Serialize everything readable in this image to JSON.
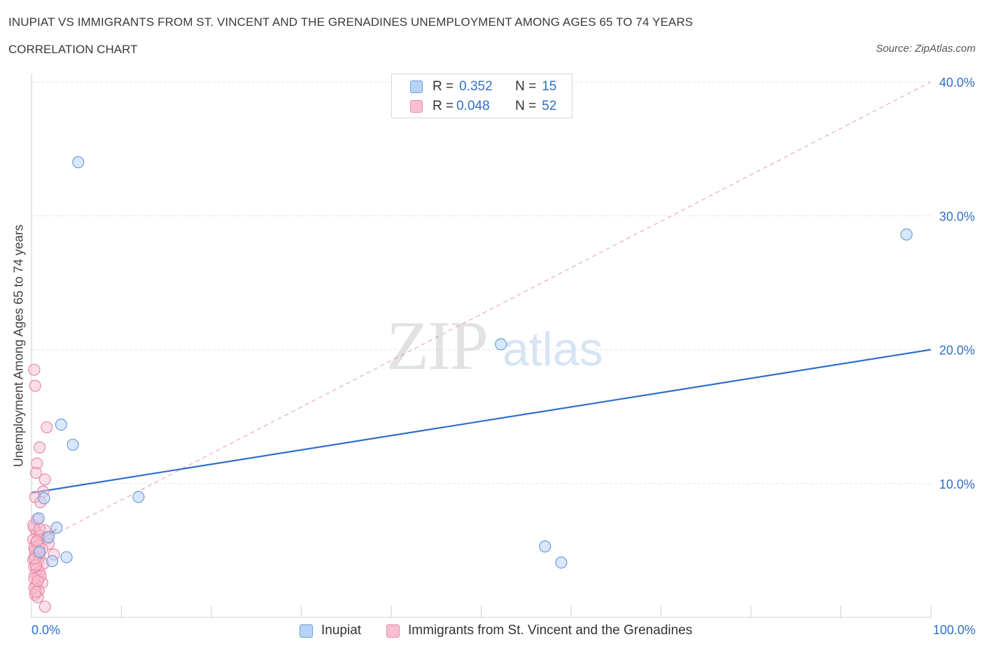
{
  "header": {
    "title": "INUPIAT VS IMMIGRANTS FROM ST. VINCENT AND THE GRENADINES UNEMPLOYMENT AMONG AGES 65 TO 74 YEARS",
    "subtitle": "CORRELATION CHART",
    "source": "Source: ZipAtlas.com"
  },
  "watermark": {
    "zip": "ZIP",
    "atlas": "atlas"
  },
  "legend_top": {
    "r_label": "R =",
    "n_label": "N =",
    "series": [
      {
        "r": "0.352",
        "n": "15"
      },
      {
        "r": "0.048",
        "n": "52"
      }
    ]
  },
  "colors": {
    "blue_fill": "#b8d3f5",
    "blue_stroke": "#6b9edb",
    "blue_line": "#2f6fc9",
    "pink_fill": "#f7bfd0",
    "pink_stroke": "#e98aa8",
    "pink_line": "#e17297",
    "axis_text": "#2f6fc9",
    "grid": "#e4e4e4"
  },
  "chart_data": {
    "type": "scatter",
    "title": "INUPIAT VS IMMIGRANTS FROM ST. VINCENT AND THE GRENADINES UNEMPLOYMENT AMONG AGES 65 TO 74 YEARS",
    "xlabel": "",
    "ylabel": "Unemployment Among Ages 65 to 74 years",
    "xlim": [
      0,
      100
    ],
    "ylim": [
      0,
      40
    ],
    "x_tick_labels": [
      "0.0%",
      "100.0%"
    ],
    "y_ticks": [
      10,
      20,
      30,
      40
    ],
    "y_tick_labels": [
      "10.0%",
      "20.0%",
      "30.0%",
      "40.0%"
    ],
    "grid": true,
    "series": [
      {
        "name": "Inupiat",
        "color": "blue",
        "points": [
          [
            5.2,
            34.0
          ],
          [
            3.3,
            14.4
          ],
          [
            4.6,
            12.9
          ],
          [
            1.4,
            8.9
          ],
          [
            0.8,
            7.4
          ],
          [
            2.8,
            6.7
          ],
          [
            1.9,
            6.0
          ],
          [
            0.9,
            4.9
          ],
          [
            3.9,
            4.5
          ],
          [
            2.3,
            4.2
          ],
          [
            11.9,
            9.0
          ],
          [
            52.2,
            20.4
          ],
          [
            57.1,
            5.3
          ],
          [
            58.9,
            4.1
          ],
          [
            97.3,
            28.6
          ]
        ],
        "trend": [
          [
            0,
            9.3
          ],
          [
            100,
            20.0
          ]
        ]
      },
      {
        "name": "Immigrants from St. Vincent and the Grenadines",
        "color": "pink",
        "points": [
          [
            0.3,
            18.5
          ],
          [
            0.4,
            17.3
          ],
          [
            1.7,
            14.2
          ],
          [
            0.9,
            12.7
          ],
          [
            0.6,
            11.5
          ],
          [
            0.5,
            10.8
          ],
          [
            1.5,
            10.3
          ],
          [
            1.3,
            9.4
          ],
          [
            0.4,
            9.0
          ],
          [
            1.0,
            8.6
          ],
          [
            0.3,
            6.7
          ],
          [
            1.5,
            6.5
          ],
          [
            0.6,
            6.3
          ],
          [
            0.9,
            6.1
          ],
          [
            1.7,
            5.9
          ],
          [
            0.2,
            5.8
          ],
          [
            0.5,
            5.6
          ],
          [
            1.9,
            5.5
          ],
          [
            0.8,
            5.4
          ],
          [
            0.3,
            5.2
          ],
          [
            1.2,
            5.1
          ],
          [
            0.6,
            4.9
          ],
          [
            2.5,
            4.7
          ],
          [
            0.4,
            4.6
          ],
          [
            0.9,
            4.5
          ],
          [
            0.2,
            4.3
          ],
          [
            0.7,
            4.1
          ],
          [
            1.3,
            4.0
          ],
          [
            0.3,
            3.8
          ],
          [
            0.6,
            3.6
          ],
          [
            0.9,
            3.4
          ],
          [
            0.4,
            3.2
          ],
          [
            0.7,
            3.0
          ],
          [
            1.2,
            2.6
          ],
          [
            0.5,
            2.4
          ],
          [
            0.3,
            2.2
          ],
          [
            0.8,
            2.0
          ],
          [
            0.4,
            1.7
          ],
          [
            0.7,
            1.5
          ],
          [
            1.5,
            0.8
          ],
          [
            0.2,
            6.9
          ],
          [
            0.6,
            7.3
          ],
          [
            0.4,
            5.0
          ],
          [
            0.8,
            4.8
          ],
          [
            0.5,
            3.9
          ],
          [
            1.0,
            3.1
          ],
          [
            0.3,
            2.9
          ],
          [
            0.6,
            5.7
          ],
          [
            0.9,
            6.6
          ],
          [
            0.4,
            4.4
          ],
          [
            0.7,
            2.7
          ],
          [
            0.5,
            1.9
          ]
        ],
        "trend_solid": [
          [
            0,
            5.3
          ],
          [
            2.8,
            6.6
          ]
        ],
        "trend_dashed": [
          [
            0,
            5.3
          ],
          [
            100,
            40.0
          ]
        ]
      }
    ]
  },
  "legend_bottom": {
    "items": [
      "Inupiat",
      "Immigrants from St. Vincent and the Grenadines"
    ]
  }
}
